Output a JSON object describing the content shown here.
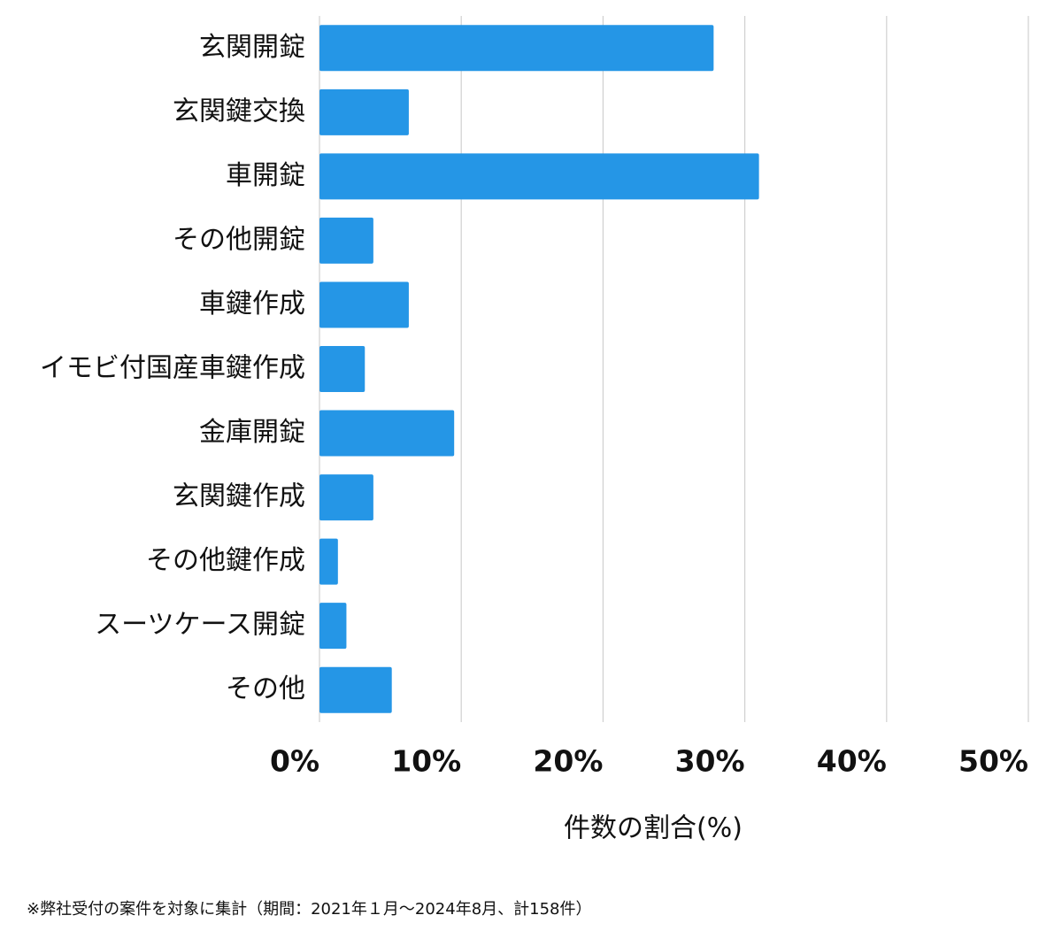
{
  "chart_data": {
    "type": "barh",
    "categories": [
      "玄関開錠",
      "玄関鍵交換",
      "車開錠",
      "その他開錠",
      "車鍵作成",
      "イモビ付国産車鍵作成",
      "金庫開錠",
      "玄関鍵作成",
      "その他鍵作成",
      "スーツケース開錠",
      "その他"
    ],
    "values": [
      27.8,
      6.3,
      31.0,
      3.8,
      6.3,
      3.2,
      9.5,
      3.8,
      1.3,
      1.9,
      5.1
    ],
    "color": "#2596e6",
    "xlim": [
      0,
      50
    ],
    "xticks": [
      {
        "value": 0,
        "label": "0%"
      },
      {
        "value": 10,
        "label": "10%"
      },
      {
        "value": 20,
        "label": "20%"
      },
      {
        "value": 30,
        "label": "30%"
      },
      {
        "value": 40,
        "label": "40%"
      },
      {
        "value": 50,
        "label": "50%"
      }
    ],
    "xlabel": "件数の割合(%)",
    "grid": true,
    "footnote": "※弊社受付の案件を対象に集計（期間：2021年１月～2024年8月、計158件）"
  }
}
